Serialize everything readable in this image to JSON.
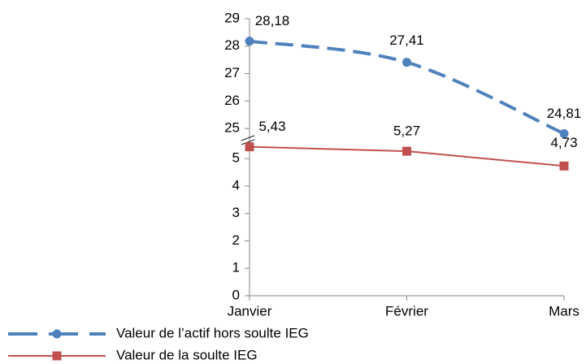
{
  "chart_data": {
    "type": "line",
    "categories": [
      "Janvier",
      "Février",
      "Mars"
    ],
    "series": [
      {
        "name": "Valeur de l’actif hors soulte IEG",
        "color": "#4f81bd",
        "values": [
          28.18,
          27.41,
          24.81
        ],
        "value_labels": [
          "28,18",
          "27,41",
          "24,81"
        ]
      },
      {
        "name": "Valeur de la soulte IEG",
        "color": "#c0504d",
        "values": [
          5.43,
          5.27,
          4.73
        ],
        "value_labels": [
          "5,43",
          "5,27",
          "4,73"
        ]
      }
    ],
    "ylim": [
      0,
      29
    ],
    "ybreak": [
      5.6,
      24.5
    ],
    "yticks": [
      0,
      1,
      2,
      3,
      4,
      5,
      25,
      26,
      27,
      28,
      29
    ],
    "legend": "bottom"
  }
}
